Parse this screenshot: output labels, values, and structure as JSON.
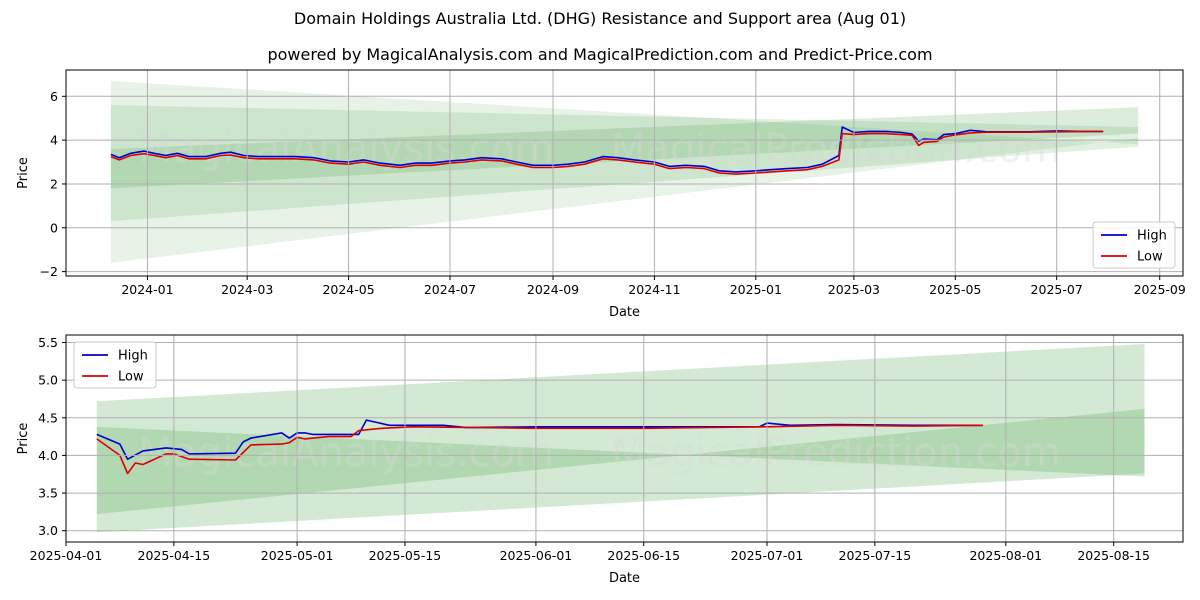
{
  "titles": {
    "main": "Domain Holdings Australia Ltd. (DHG) Resistance and Support area (Aug 01)",
    "sub": "powered by MagicalAnalysis.com and MagicalPrediction.com and Predict-Price.com"
  },
  "watermarks": [
    "MagicalAnalysis.com",
    "MagicalPrediction.com"
  ],
  "colors": {
    "high": "#0000cc",
    "low": "#dd0000",
    "band": "#3c9c3c"
  },
  "chart_data": [
    {
      "type": "line",
      "xlabel": "Date",
      "ylabel": "Price",
      "x_range": [
        "2023-11-13",
        "2025-09-15"
      ],
      "ylim": [
        -2.2,
        7.2
      ],
      "x_ticks": [
        "2024-01",
        "2024-03",
        "2024-05",
        "2024-07",
        "2024-09",
        "2024-11",
        "2025-01",
        "2025-03",
        "2025-05",
        "2025-07",
        "2025-09"
      ],
      "y_ticks": [
        -2,
        0,
        2,
        4,
        6
      ],
      "grid": true,
      "legend": "bottom-right",
      "bands": [
        {
          "x0": "2023-12-10",
          "x1": "2025-08-19",
          "lo0": -1.6,
          "lo1": 4.1,
          "hi0": 6.7,
          "hi1": 3.8,
          "opacity": 0.12
        },
        {
          "x0": "2023-12-10",
          "x1": "2025-08-19",
          "lo0": 0.3,
          "lo1": 3.7,
          "hi0": 5.6,
          "hi1": 4.6,
          "opacity": 0.15
        },
        {
          "x0": "2023-12-10",
          "x1": "2025-08-19",
          "lo0": 1.8,
          "lo1": 4.3,
          "hi0": 3.6,
          "hi1": 5.5,
          "opacity": 0.18
        }
      ],
      "series": [
        {
          "name": "High",
          "points": [
            [
              "2023-12-10",
              3.35
            ],
            [
              "2023-12-15",
              3.2
            ],
            [
              "2023-12-22",
              3.4
            ],
            [
              "2023-12-30",
              3.5
            ],
            [
              "2024-01-05",
              3.4
            ],
            [
              "2024-01-12",
              3.3
            ],
            [
              "2024-01-19",
              3.4
            ],
            [
              "2024-01-26",
              3.25
            ],
            [
              "2024-02-05",
              3.25
            ],
            [
              "2024-02-14",
              3.4
            ],
            [
              "2024-02-20",
              3.45
            ],
            [
              "2024-02-28",
              3.3
            ],
            [
              "2024-03-08",
              3.25
            ],
            [
              "2024-03-20",
              3.25
            ],
            [
              "2024-03-30",
              3.25
            ],
            [
              "2024-04-10",
              3.2
            ],
            [
              "2024-04-20",
              3.05
            ],
            [
              "2024-05-01",
              3.0
            ],
            [
              "2024-05-10",
              3.1
            ],
            [
              "2024-05-20",
              2.95
            ],
            [
              "2024-06-01",
              2.85
            ],
            [
              "2024-06-10",
              2.95
            ],
            [
              "2024-06-20",
              2.95
            ],
            [
              "2024-07-01",
              3.05
            ],
            [
              "2024-07-10",
              3.1
            ],
            [
              "2024-07-20",
              3.2
            ],
            [
              "2024-08-01",
              3.15
            ],
            [
              "2024-08-10",
              3.0
            ],
            [
              "2024-08-20",
              2.85
            ],
            [
              "2024-09-01",
              2.85
            ],
            [
              "2024-09-10",
              2.9
            ],
            [
              "2024-09-20",
              3.0
            ],
            [
              "2024-10-01",
              3.25
            ],
            [
              "2024-10-10",
              3.2
            ],
            [
              "2024-10-20",
              3.1
            ],
            [
              "2024-11-01",
              3.0
            ],
            [
              "2024-11-10",
              2.8
            ],
            [
              "2024-11-20",
              2.85
            ],
            [
              "2024-12-01",
              2.8
            ],
            [
              "2024-12-10",
              2.6
            ],
            [
              "2024-12-20",
              2.55
            ],
            [
              "2025-01-01",
              2.6
            ],
            [
              "2025-01-10",
              2.65
            ],
            [
              "2025-01-20",
              2.7
            ],
            [
              "2025-02-01",
              2.75
            ],
            [
              "2025-02-10",
              2.9
            ],
            [
              "2025-02-20",
              3.3
            ],
            [
              "2025-02-22",
              4.6
            ],
            [
              "2025-03-01",
              4.35
            ],
            [
              "2025-03-10",
              4.4
            ],
            [
              "2025-03-20",
              4.4
            ],
            [
              "2025-03-30",
              4.35
            ],
            [
              "2025-04-05",
              4.28
            ],
            [
              "2025-04-09",
              3.95
            ],
            [
              "2025-04-12",
              4.05
            ],
            [
              "2025-04-20",
              4.02
            ],
            [
              "2025-04-24",
              4.25
            ],
            [
              "2025-05-01",
              4.3
            ],
            [
              "2025-05-10",
              4.45
            ],
            [
              "2025-05-20",
              4.38
            ],
            [
              "2025-06-01",
              4.38
            ],
            [
              "2025-06-15",
              4.38
            ],
            [
              "2025-07-01",
              4.42
            ],
            [
              "2025-07-15",
              4.4
            ],
            [
              "2025-07-29",
              4.4
            ]
          ]
        },
        {
          "name": "Low",
          "points": [
            [
              "2023-12-10",
              3.25
            ],
            [
              "2023-12-15",
              3.1
            ],
            [
              "2023-12-22",
              3.3
            ],
            [
              "2023-12-30",
              3.38
            ],
            [
              "2024-01-05",
              3.3
            ],
            [
              "2024-01-12",
              3.2
            ],
            [
              "2024-01-19",
              3.3
            ],
            [
              "2024-01-26",
              3.15
            ],
            [
              "2024-02-05",
              3.15
            ],
            [
              "2024-02-14",
              3.3
            ],
            [
              "2024-02-20",
              3.32
            ],
            [
              "2024-02-28",
              3.2
            ],
            [
              "2024-03-08",
              3.15
            ],
            [
              "2024-03-20",
              3.15
            ],
            [
              "2024-03-30",
              3.15
            ],
            [
              "2024-04-10",
              3.1
            ],
            [
              "2024-04-20",
              2.95
            ],
            [
              "2024-05-01",
              2.9
            ],
            [
              "2024-05-10",
              3.0
            ],
            [
              "2024-05-20",
              2.85
            ],
            [
              "2024-06-01",
              2.75
            ],
            [
              "2024-06-10",
              2.85
            ],
            [
              "2024-06-20",
              2.85
            ],
            [
              "2024-07-01",
              2.95
            ],
            [
              "2024-07-10",
              3.0
            ],
            [
              "2024-07-20",
              3.1
            ],
            [
              "2024-08-01",
              3.05
            ],
            [
              "2024-08-10",
              2.9
            ],
            [
              "2024-08-20",
              2.75
            ],
            [
              "2024-09-01",
              2.75
            ],
            [
              "2024-09-10",
              2.8
            ],
            [
              "2024-09-20",
              2.9
            ],
            [
              "2024-10-01",
              3.15
            ],
            [
              "2024-10-10",
              3.1
            ],
            [
              "2024-10-20",
              3.0
            ],
            [
              "2024-11-01",
              2.9
            ],
            [
              "2024-11-10",
              2.7
            ],
            [
              "2024-11-20",
              2.75
            ],
            [
              "2024-12-01",
              2.7
            ],
            [
              "2024-12-10",
              2.5
            ],
            [
              "2024-12-20",
              2.45
            ],
            [
              "2025-01-01",
              2.5
            ],
            [
              "2025-01-10",
              2.55
            ],
            [
              "2025-01-20",
              2.6
            ],
            [
              "2025-02-01",
              2.65
            ],
            [
              "2025-02-10",
              2.8
            ],
            [
              "2025-02-20",
              3.1
            ],
            [
              "2025-02-22",
              4.3
            ],
            [
              "2025-03-01",
              4.25
            ],
            [
              "2025-03-10",
              4.3
            ],
            [
              "2025-03-20",
              4.3
            ],
            [
              "2025-03-30",
              4.25
            ],
            [
              "2025-04-05",
              4.22
            ],
            [
              "2025-04-09",
              3.76
            ],
            [
              "2025-04-12",
              3.9
            ],
            [
              "2025-04-20",
              3.94
            ],
            [
              "2025-04-24",
              4.14
            ],
            [
              "2025-05-01",
              4.24
            ],
            [
              "2025-05-10",
              4.33
            ],
            [
              "2025-05-20",
              4.36
            ],
            [
              "2025-06-01",
              4.36
            ],
            [
              "2025-06-15",
              4.36
            ],
            [
              "2025-07-01",
              4.38
            ],
            [
              "2025-07-15",
              4.39
            ],
            [
              "2025-07-29",
              4.4
            ]
          ]
        }
      ]
    },
    {
      "type": "line",
      "xlabel": "Date",
      "ylabel": "Price",
      "x_range": [
        "2025-04-01",
        "2025-08-24"
      ],
      "ylim": [
        2.85,
        5.6
      ],
      "x_ticks": [
        "2025-04-01",
        "2025-04-15",
        "2025-05-01",
        "2025-05-15",
        "2025-06-01",
        "2025-06-15",
        "2025-07-01",
        "2025-07-15",
        "2025-08-01",
        "2025-08-15"
      ],
      "y_ticks": [
        3.0,
        3.5,
        4.0,
        4.5,
        5.0,
        5.5
      ],
      "y_tick_labels": [
        "3.0",
        "3.5",
        "4.0",
        "4.5",
        "5.0",
        "5.5"
      ],
      "grid": true,
      "legend": "top-left",
      "bands": [
        {
          "x0": "2025-04-05",
          "x1": "2025-08-19",
          "lo0": 2.98,
          "lo1": 3.76,
          "hi0": 4.72,
          "hi1": 5.48,
          "opacity": 0.22
        },
        {
          "x0": "2025-04-05",
          "x1": "2025-08-19",
          "lo0": 3.22,
          "lo1": 4.62,
          "hi0": 4.38,
          "hi1": 3.72,
          "opacity": 0.22
        }
      ],
      "series": [
        {
          "name": "High",
          "points": [
            [
              "2025-04-05",
              4.28
            ],
            [
              "2025-04-08",
              4.15
            ],
            [
              "2025-04-09",
              3.95
            ],
            [
              "2025-04-11",
              4.06
            ],
            [
              "2025-04-14",
              4.1
            ],
            [
              "2025-04-16",
              4.08
            ],
            [
              "2025-04-17",
              4.02
            ],
            [
              "2025-04-23",
              4.03
            ],
            [
              "2025-04-24",
              4.18
            ],
            [
              "2025-04-25",
              4.23
            ],
            [
              "2025-04-29",
              4.3
            ],
            [
              "2025-04-30",
              4.23
            ],
            [
              "2025-05-01",
              4.3
            ],
            [
              "2025-05-02",
              4.3
            ],
            [
              "2025-05-03",
              4.28
            ],
            [
              "2025-05-08",
              4.28
            ],
            [
              "2025-05-09",
              4.28
            ],
            [
              "2025-05-10",
              4.47
            ],
            [
              "2025-05-13",
              4.4
            ],
            [
              "2025-05-20",
              4.4
            ],
            [
              "2025-05-23",
              4.37
            ],
            [
              "2025-06-01",
              4.38
            ],
            [
              "2025-06-20",
              4.38
            ],
            [
              "2025-06-30",
              4.38
            ],
            [
              "2025-07-01",
              4.43
            ],
            [
              "2025-07-04",
              4.4
            ],
            [
              "2025-07-10",
              4.41
            ],
            [
              "2025-07-20",
              4.4
            ],
            [
              "2025-07-29",
              4.4
            ]
          ]
        },
        {
          "name": "Low",
          "points": [
            [
              "2025-04-05",
              4.22
            ],
            [
              "2025-04-08",
              4.0
            ],
            [
              "2025-04-09",
              3.76
            ],
            [
              "2025-04-10",
              3.9
            ],
            [
              "2025-04-11",
              3.88
            ],
            [
              "2025-04-14",
              4.02
            ],
            [
              "2025-04-15",
              4.02
            ],
            [
              "2025-04-17",
              3.95
            ],
            [
              "2025-04-23",
              3.94
            ],
            [
              "2025-04-25",
              4.14
            ],
            [
              "2025-04-29",
              4.15
            ],
            [
              "2025-04-30",
              4.17
            ],
            [
              "2025-05-01",
              4.24
            ],
            [
              "2025-05-02",
              4.22
            ],
            [
              "2025-05-05",
              4.25
            ],
            [
              "2025-05-08",
              4.25
            ],
            [
              "2025-05-09",
              4.33
            ],
            [
              "2025-05-12",
              4.36
            ],
            [
              "2025-05-16",
              4.38
            ],
            [
              "2025-06-01",
              4.36
            ],
            [
              "2025-06-15",
              4.36
            ],
            [
              "2025-07-01",
              4.38
            ],
            [
              "2025-07-10",
              4.4
            ],
            [
              "2025-07-20",
              4.39
            ],
            [
              "2025-07-29",
              4.4
            ]
          ]
        }
      ]
    }
  ]
}
